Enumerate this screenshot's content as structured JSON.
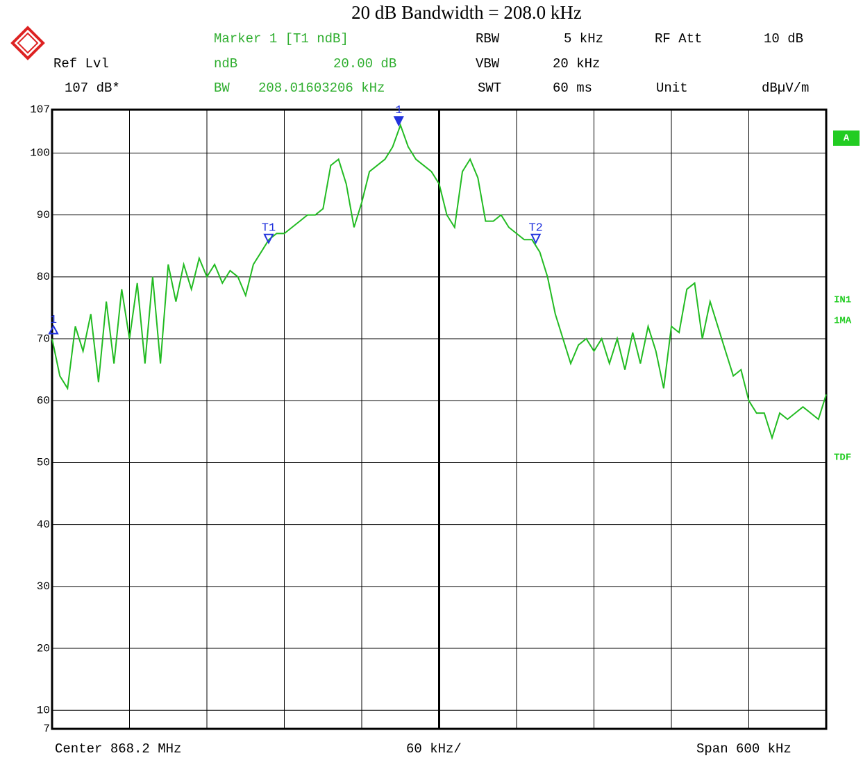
{
  "chart_data": {
    "type": "line",
    "title": "20 dB Bandwidth = 208.0 kHz",
    "info": [
      "Ref Lvl",
      "107 dB*",
      "Marker 1 [T1 ndB]",
      "ndB",
      "20.00 dB",
      "BW",
      "208.01603206 kHz",
      "RBW",
      "5 kHz",
      "VBW",
      "20 kHz",
      "SWT",
      "60 ms",
      "RF Att",
      "10 dB",
      "Unit",
      "dBµV/m"
    ],
    "footer": [
      "Center 868.2 MHz",
      "60 kHz/",
      "Span 600 kHz"
    ],
    "side_labels": [
      "A",
      "IN1",
      "1MA",
      "TDF"
    ],
    "ylim": [
      7,
      107
    ],
    "yticks": [
      107,
      100,
      90,
      80,
      70,
      60,
      50,
      40,
      30,
      20,
      10,
      7
    ],
    "grid": true,
    "series": [
      {
        "color": "#22bb22",
        "values": [
          70,
          64,
          62,
          72,
          68,
          74,
          63,
          76,
          66,
          78,
          70,
          79,
          66,
          80,
          66,
          82,
          76,
          82,
          78,
          83,
          80,
          82,
          79,
          81,
          80,
          77,
          82,
          84,
          86,
          87,
          87,
          88,
          89,
          90,
          90,
          91,
          98,
          99,
          95,
          88,
          92,
          97,
          98,
          99,
          101,
          104.5,
          101,
          99,
          98,
          97,
          95,
          90,
          88,
          97,
          99,
          96,
          89,
          89,
          90,
          88,
          87,
          86,
          86,
          84,
          80,
          74,
          70,
          66,
          69,
          70,
          68,
          70,
          66,
          70,
          65,
          71,
          66,
          72,
          68,
          62,
          72,
          71,
          78,
          79,
          70,
          76,
          72,
          68,
          64,
          65,
          60,
          58,
          58,
          54,
          58,
          57,
          58,
          59,
          58,
          57,
          61
        ]
      }
    ],
    "markers": [
      {
        "label": "1",
        "value": 104.5
      },
      {
        "label": "T1",
        "value": 85.5
      },
      {
        "label": "T2",
        "value": 85.5
      },
      {
        "label": "1",
        "value": 71.5
      }
    ]
  }
}
